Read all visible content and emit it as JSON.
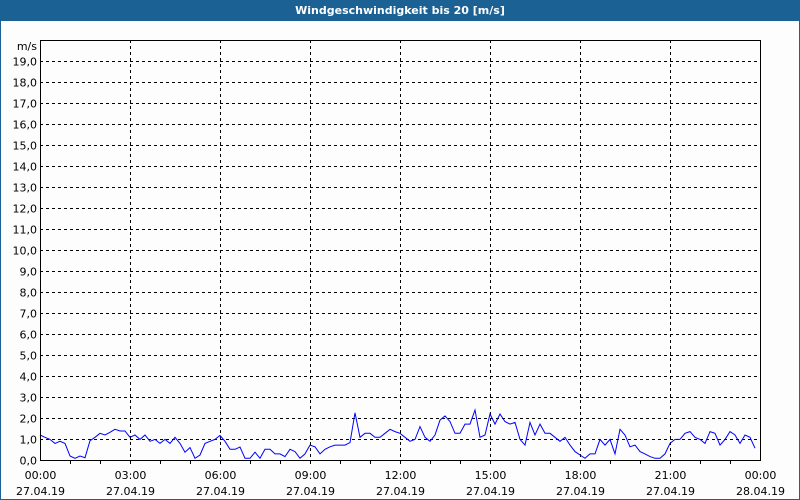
{
  "window": {
    "title": "Windgeschwindigkeit bis 20 [m/s]"
  },
  "colors": {
    "title_bar": "#1c6194",
    "line": "#0000ff",
    "grid": "#000000",
    "background": "#fcfdfc"
  },
  "chart_data": {
    "type": "line",
    "title": "Windgeschwindigkeit bis 20 [m/s]",
    "ylabel": "m/s",
    "ylim": [
      0,
      20
    ],
    "yticks": [
      "0,0",
      "1,0",
      "2,0",
      "3,0",
      "4,0",
      "5,0",
      "6,0",
      "7,0",
      "8,0",
      "9,0",
      "10,0",
      "11,0",
      "12,0",
      "13,0",
      "14,0",
      "15,0",
      "16,0",
      "17,0",
      "18,0",
      "19,0"
    ],
    "xlim": [
      "27.04.19 00:00",
      "28.04.19 00:00"
    ],
    "xticks": [
      {
        "time": "00:00",
        "date": "27.04.19"
      },
      {
        "time": "03:00",
        "date": "27.04.19"
      },
      {
        "time": "06:00",
        "date": "27.04.19"
      },
      {
        "time": "09:00",
        "date": "27.04.19"
      },
      {
        "time": "12:00",
        "date": "27.04.19"
      },
      {
        "time": "15:00",
        "date": "27.04.19"
      },
      {
        "time": "18:00",
        "date": "27.04.19"
      },
      {
        "time": "21:00",
        "date": "27.04.19"
      },
      {
        "time": "00:00",
        "date": "28.04.19"
      }
    ],
    "grid": true,
    "series": [
      {
        "points": [
          [
            "00:00",
            1.19
          ],
          [
            "00:10",
            1.08
          ],
          [
            "00:20",
            0.98
          ],
          [
            "00:30",
            0.79
          ],
          [
            "00:40",
            0.89
          ],
          [
            "00:50",
            0.79
          ],
          [
            "01:00",
            0.19
          ],
          [
            "01:10",
            0.08
          ],
          [
            "01:20",
            0.19
          ],
          [
            "01:30",
            0.11
          ],
          [
            "01:40",
            0.92
          ],
          [
            "01:50",
            1.08
          ],
          [
            "02:00",
            1.27
          ],
          [
            "02:10",
            1.19
          ],
          [
            "02:20",
            1.32
          ],
          [
            "02:30",
            1.46
          ],
          [
            "02:40",
            1.38
          ],
          [
            "02:50",
            1.38
          ],
          [
            "03:00",
            1.08
          ],
          [
            "03:10",
            1.19
          ],
          [
            "03:20",
            0.98
          ],
          [
            "03:30",
            1.19
          ],
          [
            "03:40",
            0.89
          ],
          [
            "03:50",
            0.98
          ],
          [
            "04:00",
            0.79
          ],
          [
            "04:10",
            0.98
          ],
          [
            "04:20",
            0.79
          ],
          [
            "04:30",
            1.08
          ],
          [
            "04:40",
            0.79
          ],
          [
            "04:50",
            0.37
          ],
          [
            "05:00",
            0.59
          ],
          [
            "05:10",
            0.08
          ],
          [
            "05:20",
            0.24
          ],
          [
            "05:30",
            0.79
          ],
          [
            "05:40",
            0.89
          ],
          [
            "05:50",
            0.98
          ],
          [
            "06:00",
            1.17
          ],
          [
            "06:10",
            0.89
          ],
          [
            "06:20",
            0.51
          ],
          [
            "06:30",
            0.51
          ],
          [
            "06:40",
            0.62
          ],
          [
            "06:50",
            0.08
          ],
          [
            "07:00",
            0.08
          ],
          [
            "07:10",
            0.37
          ],
          [
            "07:20",
            0.08
          ],
          [
            "07:30",
            0.51
          ],
          [
            "07:40",
            0.51
          ],
          [
            "07:50",
            0.29
          ],
          [
            "08:00",
            0.29
          ],
          [
            "08:10",
            0.16
          ],
          [
            "08:20",
            0.51
          ],
          [
            "08:30",
            0.4
          ],
          [
            "08:40",
            0.08
          ],
          [
            "08:50",
            0.29
          ],
          [
            "09:00",
            0.71
          ],
          [
            "09:10",
            0.63
          ],
          [
            "09:20",
            0.29
          ],
          [
            "09:30",
            0.51
          ],
          [
            "09:40",
            0.63
          ],
          [
            "09:50",
            0.71
          ],
          [
            "10:00",
            0.71
          ],
          [
            "10:10",
            0.71
          ],
          [
            "10:20",
            0.83
          ],
          [
            "10:30",
            2.25
          ],
          [
            "10:40",
            1.08
          ],
          [
            "10:50",
            1.27
          ],
          [
            "11:00",
            1.27
          ],
          [
            "11:10",
            1.08
          ],
          [
            "11:20",
            1.08
          ],
          [
            "11:30",
            1.27
          ],
          [
            "11:40",
            1.46
          ],
          [
            "11:50",
            1.35
          ],
          [
            "12:00",
            1.27
          ],
          [
            "12:10",
            1.08
          ],
          [
            "12:20",
            0.89
          ],
          [
            "12:30",
            0.98
          ],
          [
            "12:40",
            1.59
          ],
          [
            "12:50",
            1.08
          ],
          [
            "13:00",
            0.89
          ],
          [
            "13:10",
            1.19
          ],
          [
            "13:20",
            1.9
          ],
          [
            "13:30",
            2.1
          ],
          [
            "13:40",
            1.83
          ],
          [
            "13:50",
            1.27
          ],
          [
            "14:00",
            1.27
          ],
          [
            "14:10",
            1.71
          ],
          [
            "14:20",
            1.71
          ],
          [
            "14:30",
            2.38
          ],
          [
            "14:40",
            1.08
          ],
          [
            "14:50",
            1.19
          ],
          [
            "15:00",
            2.19
          ],
          [
            "15:10",
            1.71
          ],
          [
            "15:20",
            2.19
          ],
          [
            "15:30",
            1.83
          ],
          [
            "15:40",
            1.71
          ],
          [
            "15:50",
            1.79
          ],
          [
            "16:00",
            0.98
          ],
          [
            "16:10",
            0.71
          ],
          [
            "16:20",
            1.79
          ],
          [
            "16:30",
            1.19
          ],
          [
            "16:40",
            1.71
          ],
          [
            "16:50",
            1.27
          ],
          [
            "17:00",
            1.27
          ],
          [
            "17:10",
            1.08
          ],
          [
            "17:20",
            0.89
          ],
          [
            "17:30",
            1.08
          ],
          [
            "17:40",
            0.71
          ],
          [
            "17:50",
            0.4
          ],
          [
            "18:00",
            0.24
          ],
          [
            "18:10",
            0.08
          ],
          [
            "18:20",
            0.29
          ],
          [
            "18:30",
            0.29
          ],
          [
            "18:40",
            0.98
          ],
          [
            "18:50",
            0.71
          ],
          [
            "19:00",
            0.98
          ],
          [
            "19:10",
            0.29
          ],
          [
            "19:20",
            1.46
          ],
          [
            "19:30",
            1.19
          ],
          [
            "19:40",
            0.63
          ],
          [
            "19:50",
            0.71
          ],
          [
            "20:00",
            0.4
          ],
          [
            "20:10",
            0.29
          ],
          [
            "20:20",
            0.16
          ],
          [
            "20:30",
            0.08
          ],
          [
            "20:40",
            0.08
          ],
          [
            "20:50",
            0.29
          ],
          [
            "21:00",
            0.79
          ],
          [
            "21:10",
            0.98
          ],
          [
            "21:20",
            0.98
          ],
          [
            "21:30",
            1.27
          ],
          [
            "21:40",
            1.35
          ],
          [
            "21:50",
            1.08
          ],
          [
            "22:00",
            0.98
          ],
          [
            "22:10",
            0.79
          ],
          [
            "22:20",
            1.35
          ],
          [
            "22:30",
            1.27
          ],
          [
            "22:40",
            0.71
          ],
          [
            "22:50",
            0.98
          ],
          [
            "23:00",
            1.35
          ],
          [
            "23:10",
            1.19
          ],
          [
            "23:20",
            0.79
          ],
          [
            "23:30",
            1.19
          ],
          [
            "23:40",
            1.08
          ],
          [
            "23:50",
            0.56
          ]
        ]
      }
    ]
  }
}
